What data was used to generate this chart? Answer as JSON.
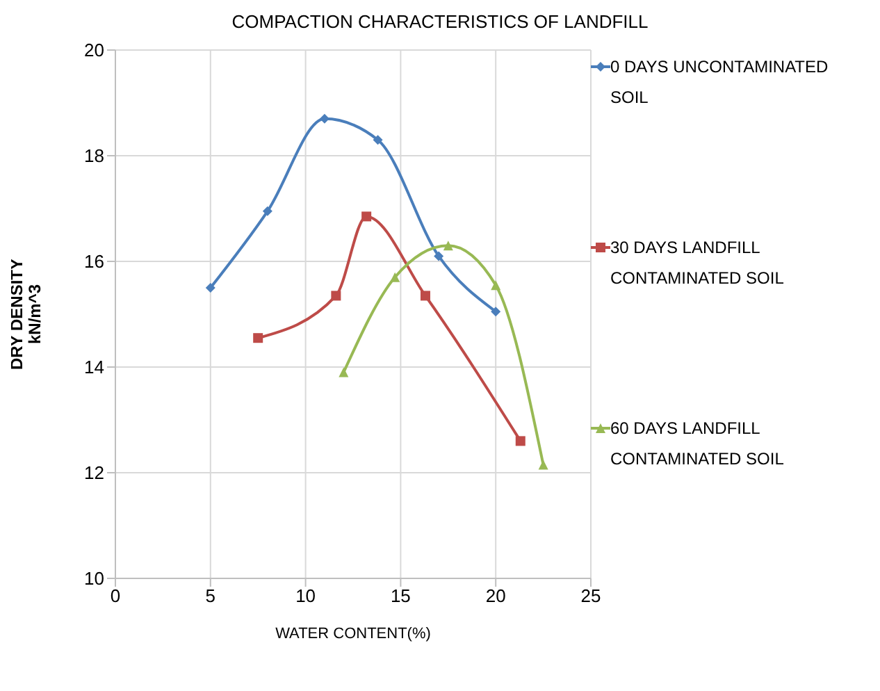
{
  "chart_data": {
    "type": "line",
    "title": "COMPACTION CHARACTERISTICS OF LANDFILL",
    "xlabel": "WATER CONTENT(%)",
    "ylabel": "DRY DENSITY kN/m^3",
    "xlim": [
      0,
      25
    ],
    "xticks": [
      0,
      5,
      10,
      15,
      20,
      25
    ],
    "ylim": [
      10,
      20
    ],
    "yticks": [
      10,
      12,
      14,
      16,
      18,
      20
    ],
    "grid": true,
    "legend": "right",
    "series": [
      {
        "name": "0 DAYS UNCONTAMINATED SOIL",
        "color": "#4a7ebb",
        "marker": "diamond",
        "x": [
          5,
          8,
          11,
          13.8,
          17,
          20
        ],
        "values": [
          15.5,
          16.95,
          18.7,
          18.3,
          16.1,
          15.05
        ]
      },
      {
        "name": "30 DAYS LANDFILL CONTAMINATED SOIL",
        "color": "#be4b48",
        "marker": "square",
        "x": [
          7.5,
          11.6,
          13.2,
          16.3,
          21.3
        ],
        "values": [
          14.55,
          15.35,
          16.85,
          15.35,
          12.6
        ]
      },
      {
        "name": "60 DAYS LANDFILL CONTAMINATED SOIL",
        "color": "#98b954",
        "marker": "triangle",
        "x": [
          12,
          14.7,
          17.5,
          20,
          22.5
        ],
        "values": [
          13.9,
          15.7,
          16.3,
          15.55,
          12.15
        ]
      }
    ]
  }
}
